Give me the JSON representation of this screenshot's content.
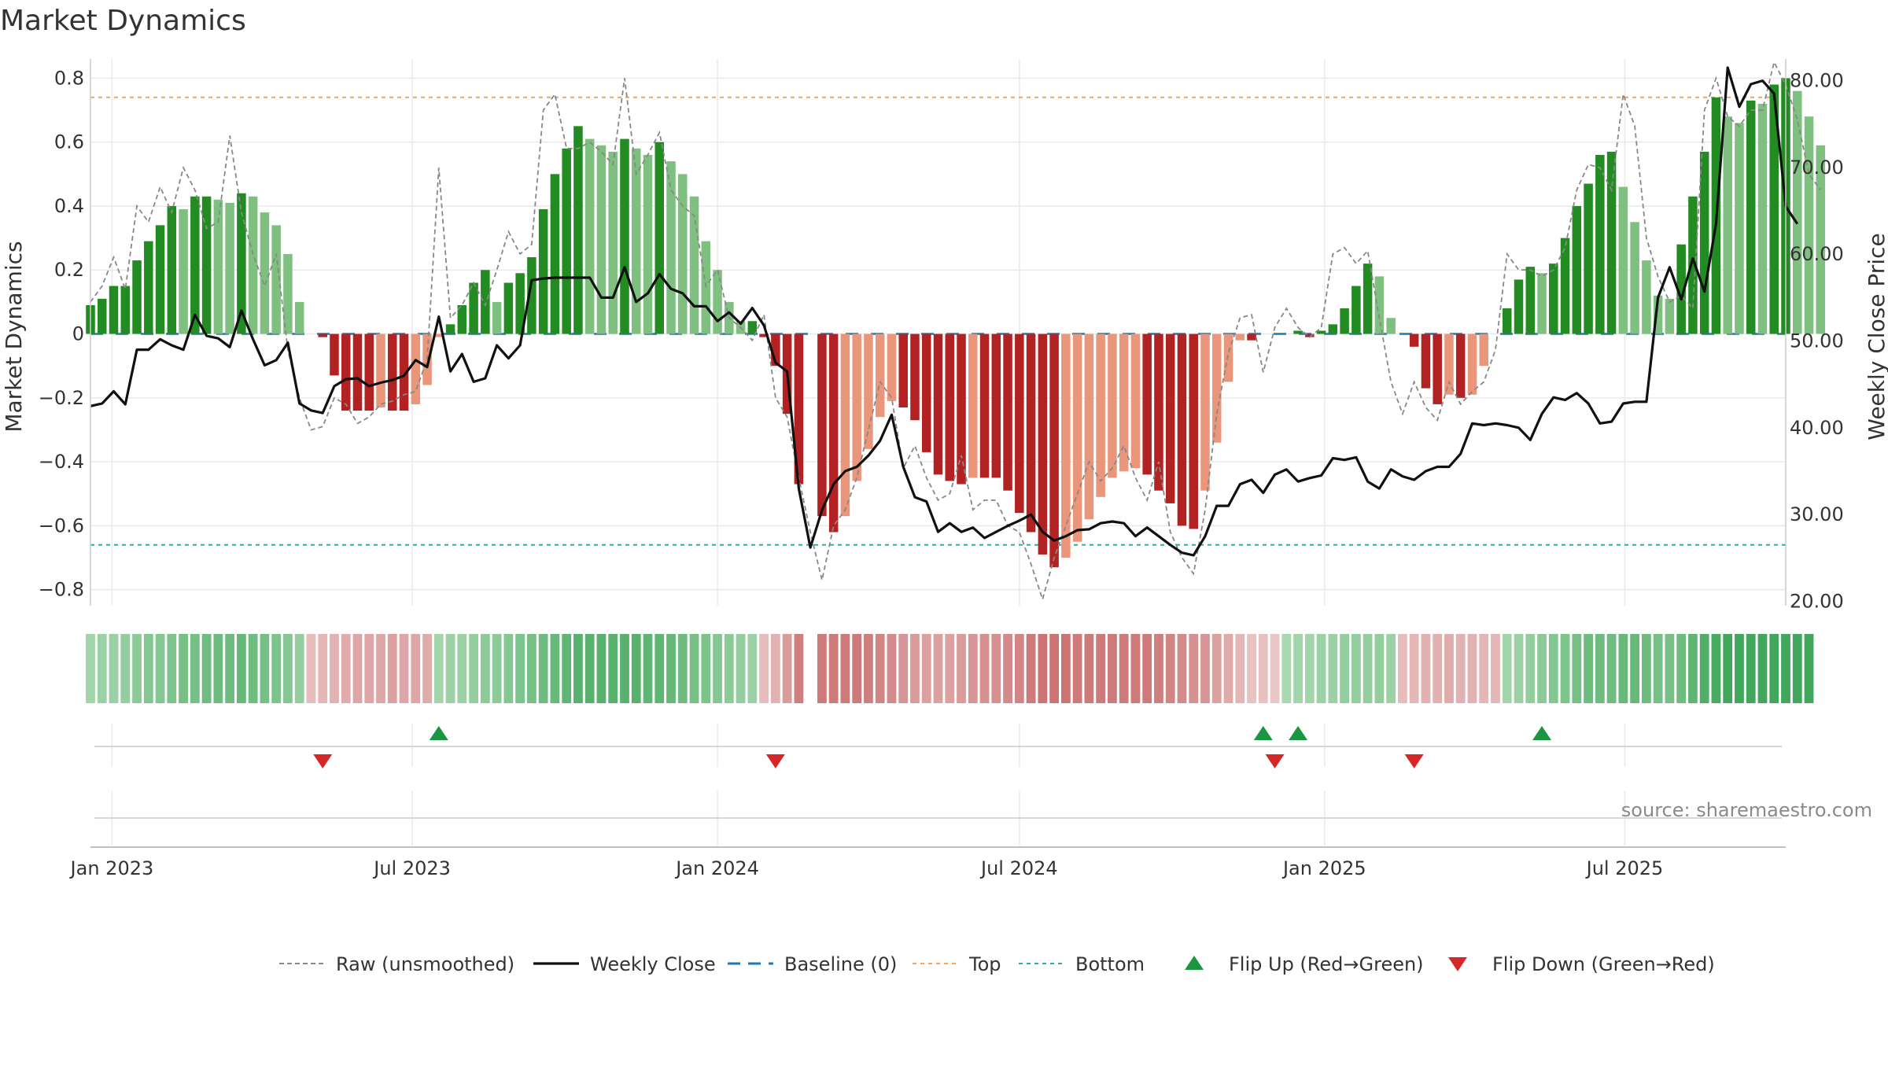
{
  "chart_data": {
    "type": "bar",
    "title": "Market Dynamics",
    "ylabel_left": "Market Dynamics",
    "ylabel_right": "Weekly Close Price",
    "x_start": "2022-12-19",
    "x_end": "2025-10-06",
    "left_ylim": [
      -0.85,
      0.86
    ],
    "right_ylim": [
      19.5,
      82.5
    ],
    "left_ticks": [
      {
        "v": 0.8,
        "label": "0.8"
      },
      {
        "v": 0.6,
        "label": "0.6"
      },
      {
        "v": 0.4,
        "label": "0.4"
      },
      {
        "v": 0.2,
        "label": "0.2"
      },
      {
        "v": 0,
        "label": "0"
      },
      {
        "v": -0.2,
        "label": "−0.2"
      },
      {
        "v": -0.4,
        "label": "−0.4"
      },
      {
        "v": -0.6,
        "label": "−0.6"
      },
      {
        "v": -0.8,
        "label": "−0.8"
      }
    ],
    "right_ticks": [
      {
        "v": 80,
        "label": "80.00"
      },
      {
        "v": 70,
        "label": "70.00"
      },
      {
        "v": 60,
        "label": "60.00"
      },
      {
        "v": 50,
        "label": "50.00"
      },
      {
        "v": 40,
        "label": "40.00"
      },
      {
        "v": 30,
        "label": "30.00"
      },
      {
        "v": 20,
        "label": "20.00"
      }
    ],
    "x_ticks": [
      {
        "date": "2023-01-01",
        "label": "Jan 2023"
      },
      {
        "date": "2023-07-01",
        "label": "Jul 2023"
      },
      {
        "date": "2024-01-01",
        "label": "Jan 2024"
      },
      {
        "date": "2024-07-01",
        "label": "Jul 2024"
      },
      {
        "date": "2025-01-01",
        "label": "Jan 2025"
      },
      {
        "date": "2025-07-01",
        "label": "Jul 2025"
      }
    ],
    "top_level": 0.74,
    "bottom_level": -0.66,
    "baseline": 0,
    "colors": {
      "strong_green": "#228b22",
      "light_green": "#7fbf7f",
      "strong_red": "#b22222",
      "light_red": "#e9967a",
      "raw": "#888888",
      "close": "#111111",
      "baseline": "#1f77b4",
      "top": "#f4a460",
      "bottom": "#20b2aa",
      "flip_up": "#1a9641",
      "flip_down": "#d62728"
    },
    "series": [
      {
        "name": "Market Dynamics",
        "values": [
          0.09,
          0.11,
          0.15,
          0.15,
          0.23,
          0.29,
          0.34,
          0.4,
          0.39,
          0.43,
          0.43,
          0.42,
          0.41,
          0.44,
          0.43,
          0.38,
          0.34,
          0.25,
          0.1,
          null,
          -0.01,
          -0.13,
          -0.24,
          -0.24,
          -0.24,
          -0.23,
          -0.24,
          -0.24,
          -0.22,
          -0.16,
          -0.01,
          0.03,
          0.09,
          0.16,
          0.2,
          0.1,
          0.16,
          0.19,
          0.24,
          0.39,
          0.5,
          0.58,
          0.65,
          0.61,
          0.59,
          0.57,
          0.61,
          0.58,
          0.56,
          0.6,
          0.54,
          0.5,
          0.43,
          0.29,
          0.2,
          0.1,
          0.04,
          0.04,
          -0.01,
          -0.1,
          -0.25,
          -0.47,
          null,
          -0.57,
          -0.62,
          -0.57,
          -0.46,
          -0.36,
          -0.26,
          -0.21,
          -0.23,
          -0.27,
          -0.37,
          -0.44,
          -0.46,
          -0.47,
          -0.45,
          -0.45,
          -0.45,
          -0.49,
          -0.56,
          -0.62,
          -0.69,
          -0.73,
          -0.7,
          -0.65,
          -0.58,
          -0.51,
          -0.45,
          -0.43,
          -0.42,
          -0.44,
          -0.49,
          -0.53,
          -0.6,
          -0.61,
          -0.49,
          -0.34,
          -0.15,
          -0.02,
          -0.02,
          null,
          null,
          null,
          0.01,
          -0.01,
          0.01,
          0.03,
          0.08,
          0.15,
          0.22,
          0.18,
          0.05,
          0,
          -0.04,
          -0.17,
          -0.22,
          -0.19,
          -0.2,
          -0.19,
          -0.1,
          null,
          0.08,
          0.17,
          0.21,
          0.19,
          0.22,
          0.3,
          0.4,
          0.47,
          0.56,
          0.57,
          0.46,
          0.35,
          0.23,
          0.12,
          0.11,
          0.28,
          0.43,
          0.57,
          0.74,
          0.68,
          0.66,
          0.73,
          0.72,
          0.78,
          0.8,
          0.76,
          0.68,
          0.59
        ]
      },
      {
        "name": "Raw (unsmoothed)",
        "values": [
          0.1,
          0.15,
          0.24,
          0.14,
          0.4,
          0.35,
          0.46,
          0.38,
          0.52,
          0.45,
          0.33,
          0.35,
          0.62,
          0.38,
          0.25,
          0.15,
          0.25,
          -0.05,
          -0.2,
          -0.3,
          -0.29,
          -0.2,
          -0.22,
          -0.28,
          -0.26,
          -0.22,
          -0.21,
          -0.19,
          -0.18,
          -0.08,
          0.52,
          0.05,
          0.09,
          0.16,
          0.09,
          0.2,
          0.32,
          0.25,
          0.28,
          0.7,
          0.75,
          0.58,
          0.58,
          0.6,
          0.57,
          0.53,
          0.8,
          0.5,
          0.56,
          0.63,
          0.45,
          0.4,
          0.37,
          0.15,
          0.2,
          0.05,
          0.02,
          -0.02,
          0.06,
          -0.2,
          -0.26,
          -0.45,
          -0.62,
          -0.77,
          -0.6,
          -0.55,
          -0.45,
          -0.3,
          -0.15,
          -0.2,
          -0.42,
          -0.35,
          -0.45,
          -0.52,
          -0.5,
          -0.38,
          -0.55,
          -0.52,
          -0.52,
          -0.6,
          -0.62,
          -0.72,
          -0.83,
          -0.7,
          -0.6,
          -0.5,
          -0.4,
          -0.46,
          -0.42,
          -0.35,
          -0.45,
          -0.52,
          -0.4,
          -0.62,
          -0.7,
          -0.75,
          -0.55,
          -0.25,
          -0.06,
          0.05,
          0.06,
          -0.12,
          0.02,
          0.08,
          0.02,
          -0.01,
          0.02,
          0.25,
          0.27,
          0.22,
          0.26,
          0.05,
          -0.15,
          -0.25,
          -0.15,
          -0.23,
          -0.27,
          -0.15,
          -0.22,
          -0.18,
          -0.15,
          -0.05,
          0.25,
          0.2,
          0.2,
          0.18,
          0.2,
          0.27,
          0.45,
          0.53,
          0.52,
          0.45,
          0.75,
          0.65,
          0.3,
          0.18,
          0.1,
          0.12,
          0.08,
          0.7,
          0.8,
          0.68,
          0.65,
          0.7,
          0.7,
          0.85,
          0.78,
          0.67,
          0.5,
          0.45
        ]
      },
      {
        "name": "Weekly Close",
        "values": [
          42.5,
          42.8,
          44.2,
          42.7,
          49.0,
          49.0,
          50.2,
          49.5,
          49.0,
          53.0,
          50.6,
          50.3,
          49.3,
          53.5,
          50.2,
          47.2,
          47.8,
          49.8,
          42.8,
          42.0,
          41.7,
          44.8,
          45.6,
          45.7,
          44.8,
          45.2,
          45.5,
          46.0,
          47.8,
          47.0,
          52.8,
          46.5,
          48.5,
          45.3,
          45.7,
          49.5,
          48.0,
          49.5,
          57.0,
          57.2,
          57.3,
          57.3,
          57.3,
          57.3,
          55.0,
          55.0,
          58.5,
          54.5,
          55.5,
          57.7,
          56.0,
          55.5,
          54.0,
          54.0,
          52.3,
          53.3,
          52.0,
          53.8,
          51.8,
          47.5,
          46.5,
          33.0,
          26.2,
          30.5,
          33.5,
          35.0,
          35.5,
          36.8,
          38.5,
          41.5,
          35.5,
          32.0,
          31.5,
          28.0,
          29.0,
          28.0,
          28.5,
          27.3,
          28.0,
          28.7,
          29.3,
          30.0,
          28.0,
          27.0,
          27.5,
          28.2,
          28.3,
          29.0,
          29.2,
          29.0,
          27.5,
          28.5,
          27.5,
          26.5,
          25.6,
          25.3,
          27.5,
          31.0,
          31.0,
          33.5,
          34.0,
          32.5,
          34.6,
          35.2,
          33.8,
          34.2,
          34.5,
          36.5,
          36.3,
          36.6,
          33.8,
          33.0,
          35.2,
          34.4,
          34.0,
          35.0,
          35.5,
          35.5,
          37.0,
          40.5,
          40.3,
          40.5,
          40.3,
          40.0,
          38.6,
          41.6,
          43.5,
          43.2,
          44.0,
          42.8,
          40.5,
          40.7,
          42.8,
          43.0,
          43.0,
          55.0,
          58.5,
          54.8,
          59.5,
          55.7,
          63.5,
          81.5,
          77.0,
          79.6,
          80.0,
          78.5,
          65.5,
          63.5
        ]
      }
    ],
    "ribbon": {
      "strength": [
        0.25,
        0.3,
        0.3,
        0.35,
        0.4,
        0.45,
        0.45,
        0.5,
        0.55,
        0.55,
        0.6,
        0.6,
        0.6,
        0.65,
        0.6,
        0.55,
        0.5,
        0.45,
        0.35,
        -0.25,
        -0.3,
        -0.35,
        -0.4,
        -0.45,
        -0.45,
        -0.45,
        -0.5,
        -0.45,
        -0.45,
        -0.4,
        0.25,
        0.3,
        0.3,
        0.35,
        0.4,
        0.4,
        0.45,
        0.5,
        0.55,
        0.6,
        0.65,
        0.7,
        0.75,
        0.75,
        0.75,
        0.75,
        0.75,
        0.75,
        0.7,
        0.7,
        0.65,
        0.6,
        0.55,
        0.5,
        0.45,
        0.4,
        0.35,
        0.3,
        -0.25,
        -0.35,
        -0.55,
        -0.8,
        null,
        -0.85,
        -0.85,
        -0.85,
        -0.85,
        -0.8,
        -0.75,
        -0.7,
        -0.6,
        -0.55,
        -0.5,
        -0.5,
        -0.5,
        -0.55,
        -0.6,
        -0.65,
        -0.65,
        -0.7,
        -0.75,
        -0.85,
        -0.9,
        -0.9,
        -0.9,
        -0.85,
        -0.85,
        -0.85,
        -0.85,
        -0.85,
        -0.85,
        -0.85,
        -0.8,
        -0.75,
        -0.7,
        -0.65,
        -0.6,
        -0.5,
        -0.4,
        -0.3,
        -0.2,
        -0.2,
        -0.15,
        0.2,
        0.25,
        0.25,
        0.3,
        0.3,
        0.35,
        0.35,
        0.35,
        0.35,
        0.3,
        -0.25,
        -0.3,
        -0.35,
        -0.35,
        -0.4,
        -0.35,
        -0.35,
        -0.3,
        -0.3,
        0.25,
        0.3,
        0.35,
        0.4,
        0.45,
        0.5,
        0.55,
        0.6,
        0.6,
        0.6,
        0.65,
        0.65,
        0.6,
        0.55,
        0.55,
        0.6,
        0.7,
        0.8,
        0.85,
        0.9,
        0.9,
        0.9,
        0.9,
        0.9,
        0.9,
        0.9,
        0.9
      ]
    },
    "flip_up_weeks": [
      30,
      101,
      104,
      125
    ],
    "flip_down_weeks": [
      20,
      59,
      102,
      114
    ],
    "source_text": "source: sharemaestro.com",
    "legend": [
      {
        "type": "dashed-line",
        "label": "Raw (unsmoothed)",
        "color": "#888888"
      },
      {
        "type": "line",
        "label": "Weekly Close",
        "color": "#111111"
      },
      {
        "type": "long-dash",
        "label": "Baseline (0)",
        "color": "#1f77b4"
      },
      {
        "type": "dotted-line",
        "label": "Top",
        "color": "#f4a460"
      },
      {
        "type": "dotted-line",
        "label": "Bottom",
        "color": "#20b2aa"
      },
      {
        "type": "triangle-up",
        "label": "Flip Up (Red→Green)",
        "color": "#1a9641"
      },
      {
        "type": "triangle-down",
        "label": "Flip Down (Green→Red)",
        "color": "#d62728"
      }
    ]
  }
}
